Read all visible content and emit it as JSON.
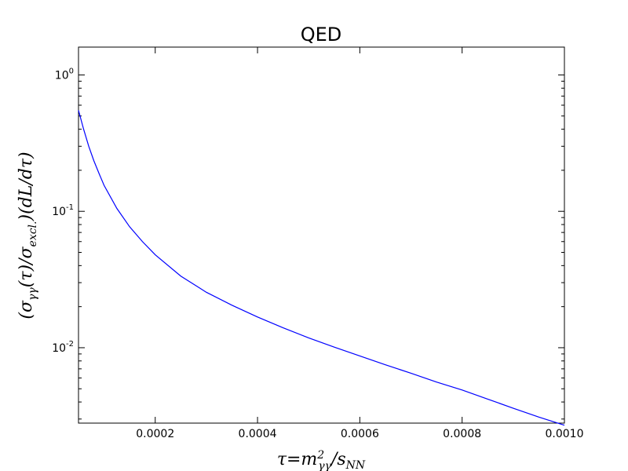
{
  "chart_data": {
    "type": "line",
    "title": "QED",
    "xlabel": "τ=m²γγ/sNN",
    "ylabel": "(σγγ(τ)/σexcl.)(dL/dτ)",
    "xlim": [
      5e-05,
      0.001
    ],
    "ylim": [
      0.0028,
      1.6
    ],
    "yscale": "log",
    "grid": false,
    "x_ticks": [
      {
        "value": 0.0002,
        "label": "0.0002"
      },
      {
        "value": 0.0004,
        "label": "0.0004"
      },
      {
        "value": 0.0006,
        "label": "0.0006"
      },
      {
        "value": 0.0008,
        "label": "0.0008"
      },
      {
        "value": 0.001,
        "label": "0.0010"
      }
    ],
    "y_ticks": [
      {
        "value": 1,
        "base": "10",
        "exp": "0"
      },
      {
        "value": 0.1,
        "base": "10",
        "exp": "-1"
      },
      {
        "value": 0.01,
        "base": "10",
        "exp": "-2"
      }
    ],
    "series": [
      {
        "color": "#0000ff",
        "x": [
          5e-05,
          6e-05,
          7e-05,
          8e-05,
          9e-05,
          0.0001,
          0.000125,
          0.00015,
          0.000175,
          0.0002,
          0.00025,
          0.0003,
          0.00035,
          0.0004,
          0.00045,
          0.0005,
          0.00055,
          0.0006,
          0.00065,
          0.0007,
          0.00075,
          0.0008,
          0.00085,
          0.0009,
          0.00095,
          0.001
        ],
        "y": [
          0.55,
          0.4,
          0.3,
          0.235,
          0.19,
          0.155,
          0.105,
          0.077,
          0.06,
          0.048,
          0.0335,
          0.0255,
          0.0205,
          0.0168,
          0.014,
          0.0118,
          0.0101,
          0.0087,
          0.0075,
          0.0065,
          0.0056,
          0.0049,
          0.0042,
          0.0036,
          0.0031,
          0.0027
        ]
      }
    ]
  }
}
